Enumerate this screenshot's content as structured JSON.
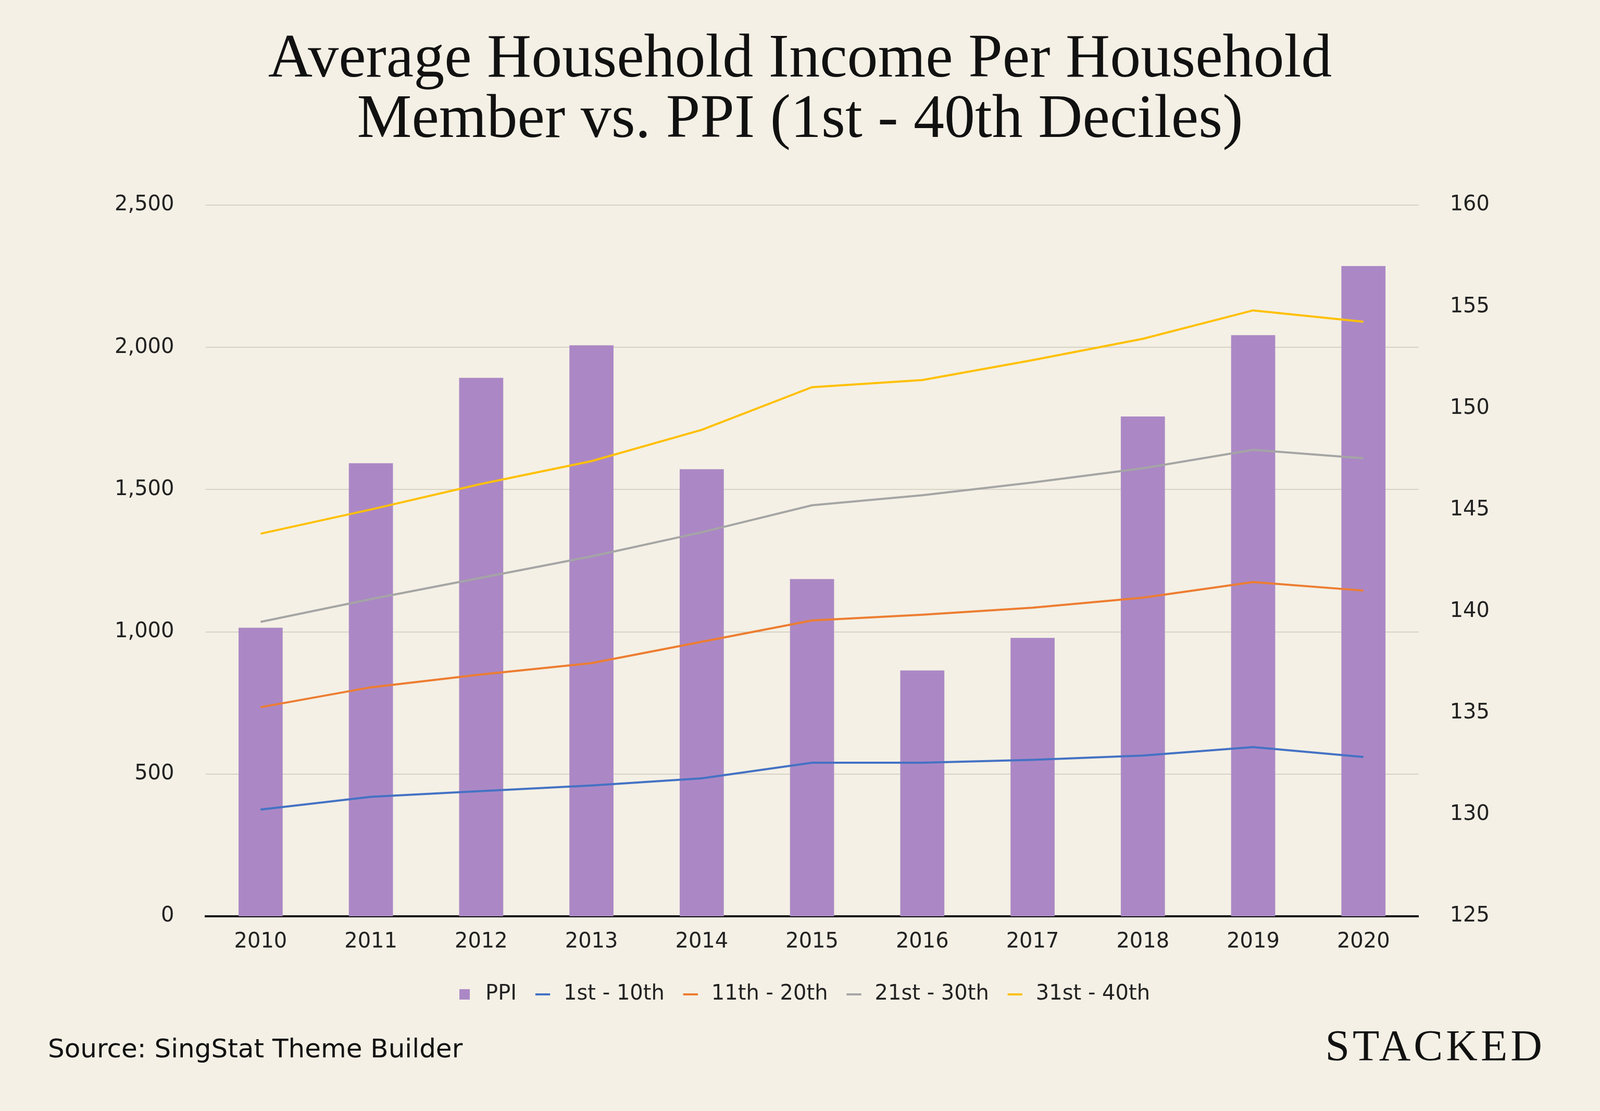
{
  "chart_data": {
    "type": "bar",
    "title": "Average Household Income Per Household Member vs. PPI (1st - 40th Deciles)",
    "source": "Source: SingStat Theme Builder",
    "watermark": "STACKED",
    "categories": [
      "2010",
      "2011",
      "2012",
      "2013",
      "2014",
      "2015",
      "2016",
      "2017",
      "2018",
      "2019",
      "2020"
    ],
    "series": [
      {
        "name": "PPI",
        "type": "bar",
        "axis": "y2",
        "color": "#ab88c5",
        "values": [
          139.2,
          147.3,
          151.5,
          153.1,
          147.0,
          141.6,
          137.1,
          138.7,
          149.6,
          153.6,
          157.0
        ]
      },
      {
        "name": "1st - 10th",
        "type": "line",
        "color": "#4472c4",
        "values": [
          375,
          420,
          440,
          460,
          485,
          540,
          540,
          550,
          565,
          595,
          560
        ]
      },
      {
        "name": "11th - 20th",
        "type": "line",
        "color": "#ed7d31",
        "values": [
          735,
          805,
          850,
          890,
          965,
          1040,
          1060,
          1085,
          1120,
          1175,
          1145
        ]
      },
      {
        "name": "21st - 30th",
        "type": "line",
        "color": "#a5a5a5",
        "values": [
          1035,
          1115,
          1190,
          1265,
          1350,
          1445,
          1480,
          1525,
          1575,
          1640,
          1610
        ]
      },
      {
        "name": "31st - 40th",
        "type": "line",
        "color": "#ffc000",
        "values": [
          1345,
          1430,
          1520,
          1600,
          1710,
          1860,
          1885,
          1955,
          2030,
          2130,
          2090
        ]
      }
    ],
    "ylim": [
      0,
      2500
    ],
    "yticks": [
      0,
      500,
      {
        "value": 1000,
        "label": "1,000"
      },
      {
        "value": 1500,
        "label": "1,500"
      },
      {
        "value": 2000,
        "label": "2,000"
      },
      {
        "value": 2500,
        "label": "2,500"
      }
    ],
    "y2lim": [
      125,
      160
    ],
    "y2ticks": [
      125,
      130,
      135,
      140,
      145,
      150,
      155,
      160
    ],
    "grid": true,
    "legend": "bottom",
    "data_labels": false
  }
}
